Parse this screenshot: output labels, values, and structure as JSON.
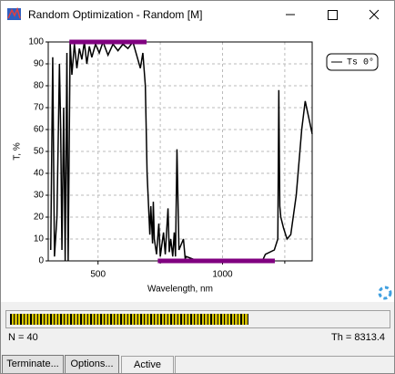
{
  "window": {
    "title": "Random Optimization - Random [M]"
  },
  "chart_data": {
    "type": "line",
    "xlabel": "Wavelength, nm",
    "ylabel": "T, %",
    "xlim": [
      300,
      1360
    ],
    "ylim": [
      0,
      100
    ],
    "xticks": [
      500,
      1000
    ],
    "xminorticks": [
      750,
      1250
    ],
    "yticks": [
      0,
      10,
      20,
      30,
      40,
      50,
      60,
      70,
      80,
      90,
      100
    ],
    "grid": true,
    "series": [
      {
        "name": "Ts 0°",
        "color": "#000000",
        "x": [
          310,
          318,
          325,
          335,
          345,
          350,
          355,
          362,
          368,
          375,
          380,
          388,
          395,
          405,
          415,
          425,
          435,
          445,
          455,
          465,
          475,
          490,
          505,
          520,
          540,
          560,
          580,
          600,
          620,
          640,
          660,
          670,
          680,
          690,
          697,
          708,
          712,
          719,
          722,
          726,
          735,
          744,
          750,
          763,
          770,
          781,
          786,
          792,
          800,
          806,
          811,
          817,
          825,
          843,
          850,
          854,
          900,
          1000,
          1100,
          1160,
          1172,
          1208,
          1222,
          1226,
          1230,
          1234,
          1245,
          1259,
          1274,
          1296,
          1318,
          1332,
          1347,
          1360
        ],
        "values": [
          5,
          93,
          2,
          20,
          90,
          60,
          5,
          70,
          0,
          95,
          0,
          100,
          85,
          99,
          88,
          97,
          92,
          100,
          90,
          98,
          93,
          99,
          95,
          100,
          94,
          99,
          96,
          99,
          97,
          100,
          92,
          88,
          95,
          80,
          40,
          12,
          25,
          8,
          27,
          10,
          3,
          17,
          2,
          13,
          3,
          24,
          4,
          10,
          2,
          13,
          2,
          51,
          5,
          10,
          1,
          2,
          0,
          0,
          0,
          0,
          3,
          5,
          10,
          78,
          25,
          20,
          15,
          10,
          12,
          30,
          60,
          73,
          65,
          58
        ]
      }
    ],
    "targets": [
      {
        "x": [
          385,
          695
        ],
        "value": 100,
        "color": "#800080"
      },
      {
        "x": [
          740,
          1210
        ],
        "value": 0,
        "color": "#800080"
      }
    ]
  },
  "status": {
    "n": "N = 40",
    "th": "Th = 8313.4"
  },
  "buttons": [
    "Terminate...",
    "Options..."
  ],
  "state": "Active"
}
